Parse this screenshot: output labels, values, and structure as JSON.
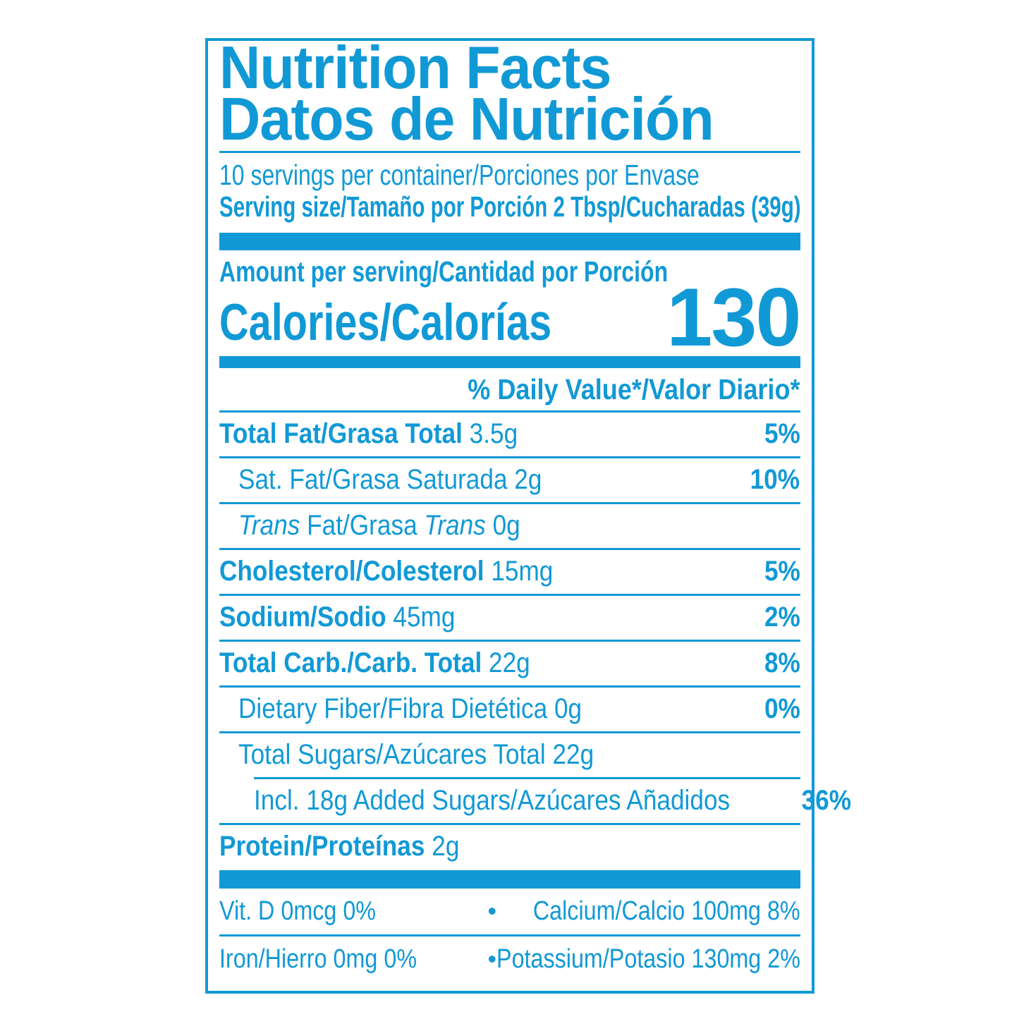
{
  "colors": {
    "accent": "#1199D6",
    "background": "#FFFFFF"
  },
  "label": {
    "title": {
      "line1": "Nutrition Facts",
      "line2": "Datos de Nutrición"
    },
    "servings_per_container": "10 servings per container/Porciones por Envase",
    "serving_size": "Serving size/Tamaño por Porción 2 Tbsp/Cucharadas (39g)",
    "amount_per_serving": "Amount per serving/Cantidad por Porción",
    "calories": {
      "label": "Calories/Calorías",
      "value": "130"
    },
    "daily_value_header": "% Daily Value*/Valor Diario*",
    "nutrients": [
      {
        "name": "nutrient-row-total-fat",
        "segments": [
          {
            "text": "Total Fat/Grasa Total",
            "bold": true
          },
          {
            "text": " 3.5g"
          }
        ],
        "percent": "5%",
        "indent": 0,
        "sep_after": 0
      },
      {
        "name": "nutrient-row-sat-fat",
        "segments": [
          {
            "text": "Sat. Fat/Grasa Saturada 2g"
          }
        ],
        "percent": "10%",
        "indent": 1,
        "sep_after": 0
      },
      {
        "name": "nutrient-row-trans-fat",
        "segments": [
          {
            "text": "Trans",
            "italic": true
          },
          {
            "text": " Fat/Grasa "
          },
          {
            "text": "Trans",
            "italic": true
          },
          {
            "text": " 0g"
          }
        ],
        "percent": "",
        "indent": 1,
        "sep_after": 0
      },
      {
        "name": "nutrient-row-cholesterol",
        "segments": [
          {
            "text": "Cholesterol/Colesterol",
            "bold": true
          },
          {
            "text": " 15mg"
          }
        ],
        "percent": "5%",
        "indent": 0,
        "sep_after": 0
      },
      {
        "name": "nutrient-row-sodium",
        "segments": [
          {
            "text": "Sodium/Sodio",
            "bold": true
          },
          {
            "text": " 45mg"
          }
        ],
        "percent": "2%",
        "indent": 0,
        "sep_after": 0
      },
      {
        "name": "nutrient-row-total-carb",
        "segments": [
          {
            "text": "Total Carb./Carb. Total",
            "bold": true
          },
          {
            "text": " 22g"
          }
        ],
        "percent": "8%",
        "indent": 0,
        "sep_after": 0
      },
      {
        "name": "nutrient-row-dietary-fiber",
        "segments": [
          {
            "text": "Dietary Fiber/Fibra Dietética 0g"
          }
        ],
        "percent": "0%",
        "indent": 1,
        "sep_after": 0
      },
      {
        "name": "nutrient-row-total-sugars",
        "segments": [
          {
            "text": "Total Sugars/Azúcares Total 22g"
          }
        ],
        "percent": "",
        "indent": 1,
        "sep_after": 2
      },
      {
        "name": "nutrient-row-added-sugars",
        "segments": [
          {
            "text": "Incl. 18g Added Sugars/Azúcares Añadidos"
          }
        ],
        "percent": "36%",
        "indent": 2,
        "sep_after": 0
      },
      {
        "name": "nutrient-row-protein",
        "segments": [
          {
            "text": "Protein/Proteínas",
            "bold": true
          },
          {
            "text": " 2g"
          }
        ],
        "percent": "",
        "indent": 0,
        "sep_after": null
      }
    ],
    "micronutrients": {
      "bullet": "•",
      "rows": [
        {
          "name": "micronutrient-row-vitd-calcium",
          "left": "Vit. D 0mcg 0%",
          "right": "Calcium/Calcio 100mg 8%"
        },
        {
          "name": "micronutrient-row-iron-potassium",
          "left": "Iron/Hierro 0mg 0%",
          "right": "Potassium/Potasio 130mg 2%"
        }
      ]
    }
  }
}
